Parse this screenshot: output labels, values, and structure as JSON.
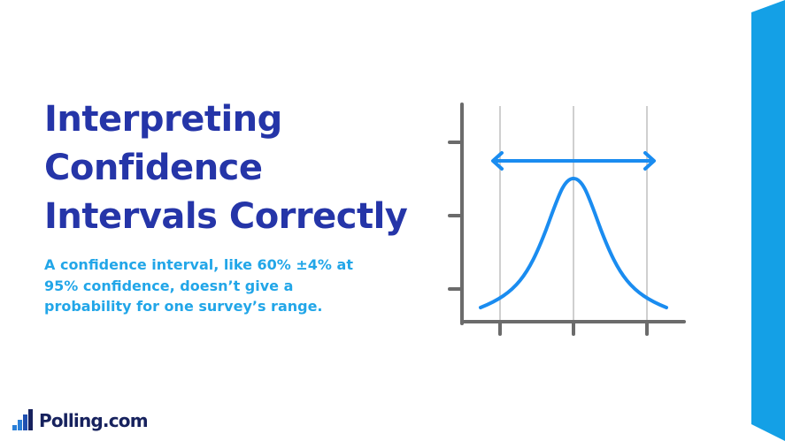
{
  "title_lines": [
    "Interpreting",
    "Confidence",
    "Intervals Correctly"
  ],
  "subtitle_lines": [
    "A confidence interval, like 60% ±4% at",
    "95% confidence, doesn’t give a",
    "probability for one survey’s range."
  ],
  "logo": {
    "text": "Polling.com",
    "icon": "bar-steps-logo-icon"
  },
  "graphic": {
    "icon": "bell-curve-interval-icon"
  },
  "colors": {
    "title": "#2535a8",
    "subtitle": "#22a6e8",
    "accent_blue": "#1a8cf0",
    "axis_gray": "#6b6b6b",
    "grid_gray": "#cfcfcf",
    "ribbon": "#14a0e6",
    "logo_text": "#17225e"
  }
}
